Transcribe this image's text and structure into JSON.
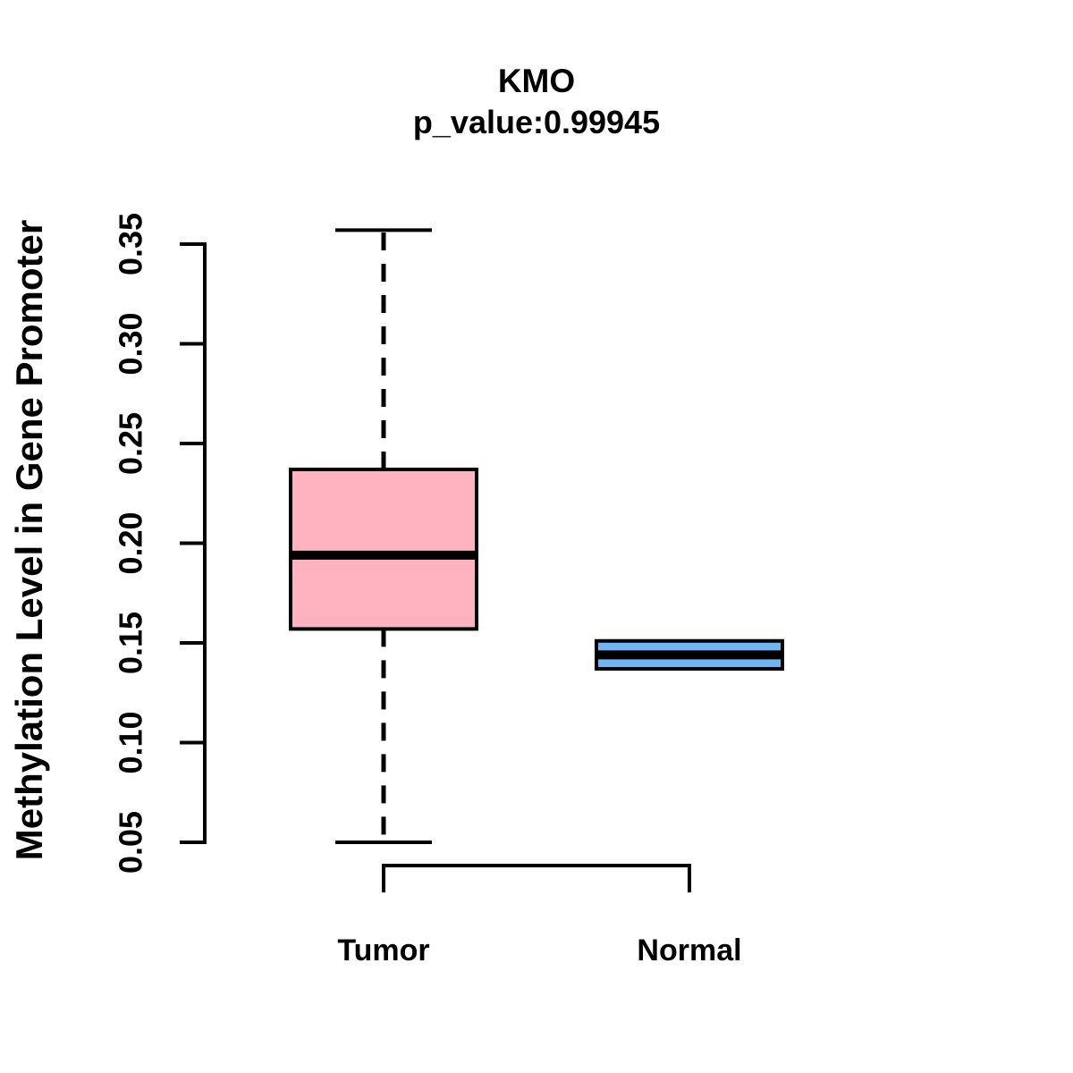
{
  "chart_data": {
    "type": "box",
    "title": "KMO",
    "subtitle": "p_value:0.99945",
    "ylabel": "Methylation Level in Gene Promoter",
    "xlabel": "",
    "ylim": [
      0.05,
      0.357
    ],
    "yticks": [
      "0.05",
      "0.10",
      "0.15",
      "0.20",
      "0.25",
      "0.30",
      "0.35"
    ],
    "grid": false,
    "legend": "none",
    "categories": [
      "Tumor",
      "Normal"
    ],
    "groups": [
      {
        "label": "Tumor",
        "box_color": "#FFB3C1",
        "whisker_low": 0.05,
        "q1": 0.157,
        "median": 0.194,
        "q3": 0.237,
        "whisker_high": 0.357,
        "whisker_style": "dashed"
      },
      {
        "label": "Normal",
        "box_color": "#6FB7F2",
        "whisker_low": 0.137,
        "q1": 0.137,
        "median": 0.144,
        "q3": 0.151,
        "whisker_high": 0.151,
        "whisker_style": "none"
      }
    ],
    "colors": {
      "tumor_fill": "#FFB3C1",
      "normal_fill": "#6FB7F2",
      "line": "#000000",
      "background": "#FFFFFF"
    }
  }
}
